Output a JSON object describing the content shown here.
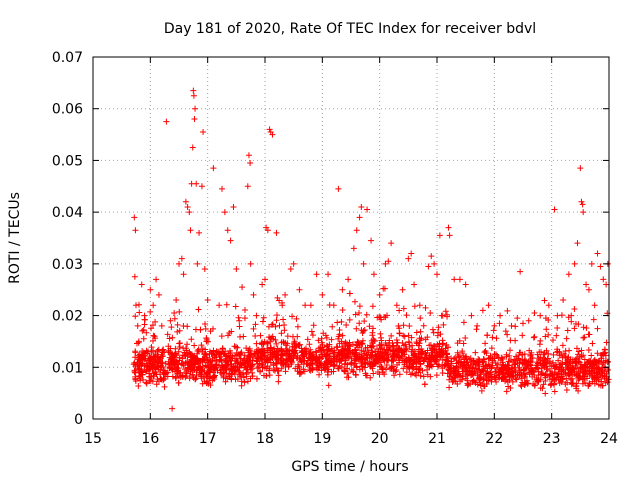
{
  "chart_data": {
    "type": "scatter",
    "title": "Day 181 of 2020, Rate Of TEC Index for receiver bdvl",
    "xlabel": "GPS time / hours",
    "ylabel": "ROTI / TECUs",
    "xlim": [
      15,
      24
    ],
    "ylim": [
      0,
      0.07
    ],
    "xticks": [
      "15",
      "16",
      "17",
      "18",
      "19",
      "20",
      "21",
      "22",
      "23",
      "24"
    ],
    "yticks": [
      "0",
      "0.01",
      "0.02",
      "0.03",
      "0.04",
      "0.05",
      "0.06",
      "0.07"
    ],
    "grid": true,
    "marker": "+",
    "color": "#ff0000",
    "series": [
      {
        "name": "ROTI",
        "points": [
          [
            15.72,
            0.039
          ],
          [
            15.74,
            0.0365
          ],
          [
            15.73,
            0.0275
          ],
          [
            15.75,
            0.022
          ],
          [
            15.78,
            0.018
          ],
          [
            15.8,
            0.015
          ],
          [
            15.85,
            0.026
          ],
          [
            15.9,
            0.02
          ],
          [
            16.0,
            0.025
          ],
          [
            16.05,
            0.022
          ],
          [
            16.1,
            0.027
          ],
          [
            16.15,
            0.024
          ],
          [
            16.2,
            0.018
          ],
          [
            16.28,
            0.0575
          ],
          [
            16.35,
            0.019
          ],
          [
            16.38,
            0.002
          ],
          [
            16.45,
            0.023
          ],
          [
            16.5,
            0.03
          ],
          [
            16.55,
            0.031
          ],
          [
            16.58,
            0.028
          ],
          [
            16.62,
            0.042
          ],
          [
            16.65,
            0.041
          ],
          [
            16.68,
            0.04
          ],
          [
            16.7,
            0.0365
          ],
          [
            16.72,
            0.0455
          ],
          [
            16.74,
            0.0525
          ],
          [
            16.75,
            0.0635
          ],
          [
            16.76,
            0.0625
          ],
          [
            16.77,
            0.058
          ],
          [
            16.78,
            0.06
          ],
          [
            16.8,
            0.0455
          ],
          [
            16.82,
            0.03
          ],
          [
            16.85,
            0.036
          ],
          [
            16.9,
            0.045
          ],
          [
            16.92,
            0.0555
          ],
          [
            16.95,
            0.029
          ],
          [
            17.0,
            0.023
          ],
          [
            17.05,
            0.017
          ],
          [
            17.1,
            0.0485
          ],
          [
            17.2,
            0.022
          ],
          [
            17.25,
            0.0445
          ],
          [
            17.3,
            0.04
          ],
          [
            17.35,
            0.0365
          ],
          [
            17.4,
            0.0345
          ],
          [
            17.45,
            0.041
          ],
          [
            17.5,
            0.029
          ],
          [
            17.55,
            0.019
          ],
          [
            17.6,
            0.0255
          ],
          [
            17.65,
            0.0195
          ],
          [
            17.7,
            0.045
          ],
          [
            17.72,
            0.051
          ],
          [
            17.74,
            0.0495
          ],
          [
            17.75,
            0.03
          ],
          [
            17.8,
            0.024
          ],
          [
            17.85,
            0.02
          ],
          [
            17.95,
            0.026
          ],
          [
            18.0,
            0.027
          ],
          [
            18.02,
            0.037
          ],
          [
            18.05,
            0.0365
          ],
          [
            18.08,
            0.056
          ],
          [
            18.1,
            0.0555
          ],
          [
            18.13,
            0.055
          ],
          [
            18.2,
            0.036
          ],
          [
            18.3,
            0.022
          ],
          [
            18.35,
            0.024
          ],
          [
            18.45,
            0.029
          ],
          [
            18.5,
            0.03
          ],
          [
            18.6,
            0.025
          ],
          [
            18.7,
            0.022
          ],
          [
            18.8,
            0.022
          ],
          [
            18.9,
            0.028
          ],
          [
            19.0,
            0.024
          ],
          [
            19.1,
            0.028
          ],
          [
            19.2,
            0.022
          ],
          [
            19.28,
            0.0445
          ],
          [
            19.35,
            0.025
          ],
          [
            19.45,
            0.027
          ],
          [
            19.55,
            0.033
          ],
          [
            19.6,
            0.0365
          ],
          [
            19.65,
            0.039
          ],
          [
            19.68,
            0.041
          ],
          [
            19.72,
            0.03
          ],
          [
            19.78,
            0.0405
          ],
          [
            19.85,
            0.0345
          ],
          [
            19.9,
            0.028
          ],
          [
            20.0,
            0.024
          ],
          [
            20.1,
            0.03
          ],
          [
            20.15,
            0.0305
          ],
          [
            20.2,
            0.034
          ],
          [
            20.3,
            0.022
          ],
          [
            20.4,
            0.025
          ],
          [
            20.5,
            0.031
          ],
          [
            20.55,
            0.032
          ],
          [
            20.6,
            0.026
          ],
          [
            20.7,
            0.022
          ],
          [
            20.8,
            0.0215
          ],
          [
            20.85,
            0.0295
          ],
          [
            20.9,
            0.0315
          ],
          [
            20.95,
            0.03
          ],
          [
            21.0,
            0.028
          ],
          [
            21.05,
            0.0355
          ],
          [
            21.1,
            0.02
          ],
          [
            21.2,
            0.037
          ],
          [
            21.22,
            0.0355
          ],
          [
            21.3,
            0.027
          ],
          [
            21.4,
            0.027
          ],
          [
            21.5,
            0.026
          ],
          [
            21.6,
            0.02
          ],
          [
            21.7,
            0.018
          ],
          [
            21.8,
            0.021
          ],
          [
            21.9,
            0.022
          ],
          [
            22.0,
            0.018
          ],
          [
            22.1,
            0.02
          ],
          [
            22.2,
            0.017
          ],
          [
            22.3,
            0.018
          ],
          [
            22.4,
            0.0195
          ],
          [
            22.45,
            0.0285
          ],
          [
            22.5,
            0.0185
          ],
          [
            22.6,
            0.019
          ],
          [
            22.7,
            0.0205
          ],
          [
            22.8,
            0.02
          ],
          [
            22.9,
            0.0195
          ],
          [
            22.95,
            0.022
          ],
          [
            23.05,
            0.0405
          ],
          [
            23.1,
            0.02
          ],
          [
            23.2,
            0.023
          ],
          [
            23.3,
            0.028
          ],
          [
            23.4,
            0.03
          ],
          [
            23.45,
            0.034
          ],
          [
            23.5,
            0.0485
          ],
          [
            23.52,
            0.042
          ],
          [
            23.54,
            0.0415
          ],
          [
            23.55,
            0.04
          ],
          [
            23.6,
            0.026
          ],
          [
            23.65,
            0.025
          ],
          [
            23.7,
            0.03
          ],
          [
            23.75,
            0.022
          ],
          [
            23.8,
            0.032
          ],
          [
            23.85,
            0.0295
          ],
          [
            23.9,
            0.027
          ],
          [
            23.95,
            0.026
          ],
          [
            23.98,
            0.03
          ]
        ]
      }
    ],
    "dense_band": {
      "x_start": 15.7,
      "x_end": 24.0,
      "core_range": [
        0.005,
        0.016
      ],
      "spread_range": [
        0.002,
        0.022
      ]
    }
  }
}
